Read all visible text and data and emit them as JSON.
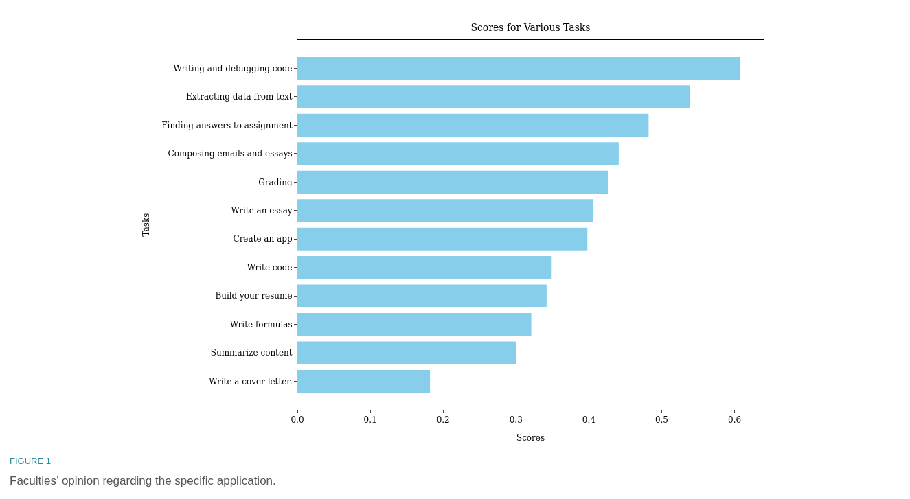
{
  "chart_data": {
    "type": "bar",
    "orientation": "horizontal",
    "title": "Scores for Various Tasks",
    "xlabel": "Scores",
    "ylabel": "Tasks",
    "categories": [
      "Writing and debugging code",
      "Extracting data from text",
      "Finding answers to assignment",
      "Composing emails and essays",
      "Grading",
      "Write an essay",
      "Create an app",
      "Write code",
      "Build your resume",
      "Write formulas",
      "Summarize content",
      "Write a cover letter."
    ],
    "values": [
      0.608,
      0.539,
      0.482,
      0.441,
      0.427,
      0.406,
      0.398,
      0.349,
      0.342,
      0.321,
      0.3,
      0.182
    ],
    "color": "#87ceeb",
    "xlim": [
      0,
      0.64
    ],
    "xticks": [
      {
        "value": 0,
        "label": "0.0"
      },
      0.1,
      0.2,
      0.3,
      0.4,
      0.5,
      0.6
    ],
    "legend": false,
    "annotations": [
      "FIGURE 1",
      "Faculties’ opinion regarding the specific application."
    ]
  }
}
